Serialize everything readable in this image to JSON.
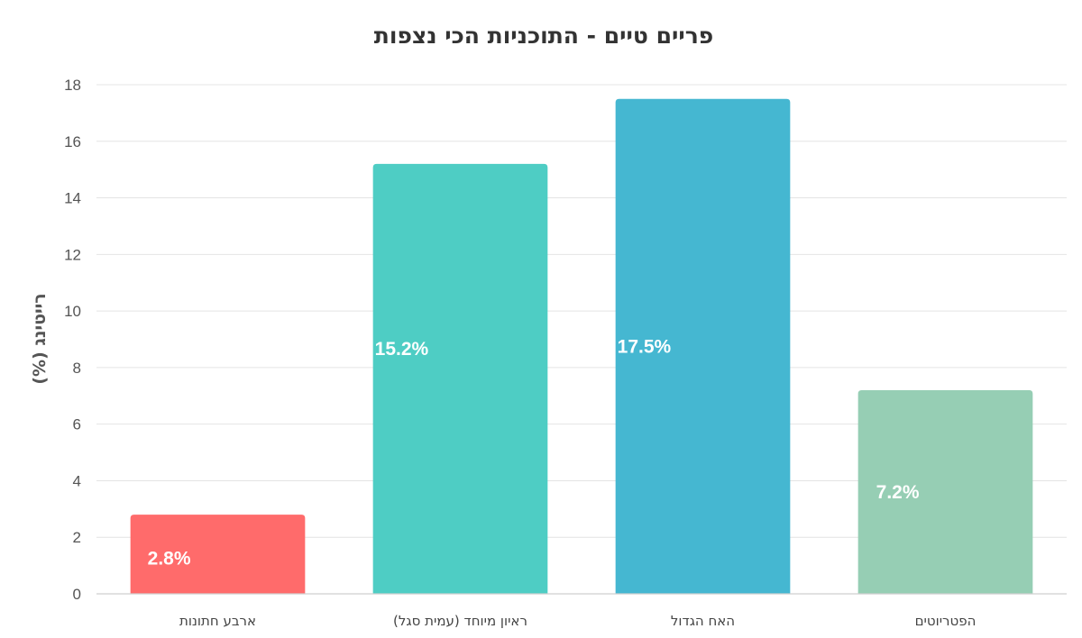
{
  "chart_data": {
    "type": "bar",
    "title": "פריים טיים - התוכניות הכי נצפות",
    "xlabel": "",
    "ylabel": "רייטינג (%)",
    "categories": [
      "ארבע חתונות",
      "ראיון מיוחד (עמית סגל)",
      "האח הגדול",
      "הפטריוטים"
    ],
    "values": [
      2.8,
      15.2,
      17.5,
      7.2
    ],
    "data_labels": [
      "2.8%",
      "15.2%",
      "17.5%",
      "7.2%"
    ],
    "colors": [
      "#ff6b6b",
      "#4ecdc4",
      "#45b7d1",
      "#96ceb4"
    ],
    "ylim": [
      0,
      18
    ],
    "yticks": [
      0,
      2,
      4,
      6,
      8,
      10,
      12,
      14,
      16,
      18
    ],
    "grid": true,
    "legend": "none"
  }
}
